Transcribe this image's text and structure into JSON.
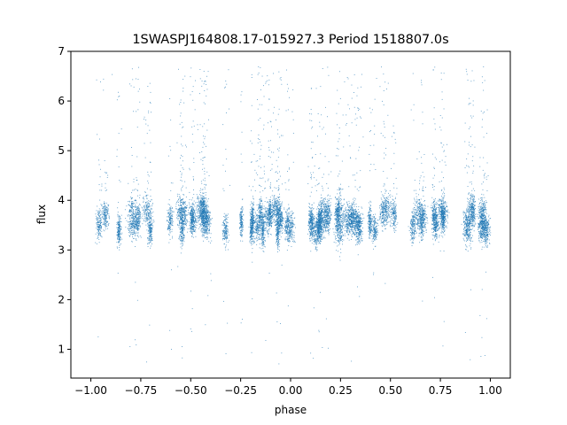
{
  "chart_data": {
    "type": "scatter",
    "title": "1SWASPJ164808.17-015927.3 Period 1518807.0s",
    "xlabel": "phase",
    "ylabel": "flux",
    "xlim": [
      -1.1,
      1.1
    ],
    "ylim": [
      0.42,
      7.0
    ],
    "xticks": [
      -1.0,
      -0.75,
      -0.5,
      -0.25,
      0.0,
      0.25,
      0.5,
      0.75,
      1.0
    ],
    "xtick_labels": [
      "−1.00",
      "−0.75",
      "−0.50",
      "−0.25",
      "0.00",
      "0.25",
      "0.50",
      "0.75",
      "1.00"
    ],
    "yticks": [
      1,
      2,
      3,
      4,
      5,
      6,
      7
    ],
    "ytick_labels": [
      "1",
      "2",
      "3",
      "4",
      "5",
      "6",
      "7"
    ],
    "grid": false,
    "marker_color": "#1f77b4",
    "series": [
      {
        "x_range": [
          -1.0,
          1.0
        ],
        "typical_flux_range": [
          3.0,
          4.2
        ],
        "median_flux": 3.6,
        "flare_flux_max": 6.7,
        "dip_flux_min": 0.7,
        "point_count_approx": 12000
      }
    ]
  }
}
